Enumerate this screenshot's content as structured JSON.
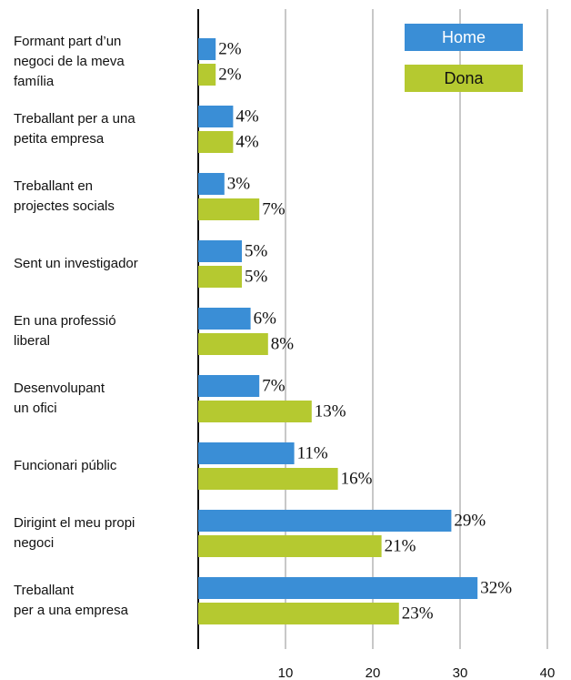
{
  "chart_data": {
    "type": "bar",
    "orientation": "horizontal",
    "categories": [
      [
        "Formant part d’un",
        "negoci de la meva",
        "família"
      ],
      [
        "Treballant per a una",
        "petita empresa"
      ],
      [
        "Treballant en",
        "projectes socials"
      ],
      [
        "Sent un investigador"
      ],
      [
        "En una professió",
        "liberal"
      ],
      [
        "Desenvolupant",
        "un ofici"
      ],
      [
        "Funcionari públic"
      ],
      [
        "Dirigint el meu propi",
        "negoci"
      ],
      [
        "Treballant",
        "per a una empresa"
      ]
    ],
    "series": [
      {
        "name": "Home",
        "color": "#3a8ed6",
        "values": [
          2,
          4,
          3,
          5,
          6,
          7,
          11,
          29,
          32
        ],
        "value_labels": [
          "2%",
          "4%",
          "3%",
          "5%",
          "6%",
          "7%",
          "11%",
          "29%",
          "32%"
        ]
      },
      {
        "name": "Dona",
        "color": "#b5c930",
        "values": [
          2,
          4,
          7,
          5,
          8,
          13,
          16,
          21,
          23
        ],
        "value_labels": [
          "2%",
          "4%",
          "7%",
          "5%",
          "8%",
          "13%",
          "16%",
          "21%",
          "23%"
        ]
      }
    ],
    "xlim": [
      0,
      40
    ],
    "xticks": [
      10,
      20,
      30,
      40
    ],
    "grid": true,
    "legend": "top-right"
  }
}
